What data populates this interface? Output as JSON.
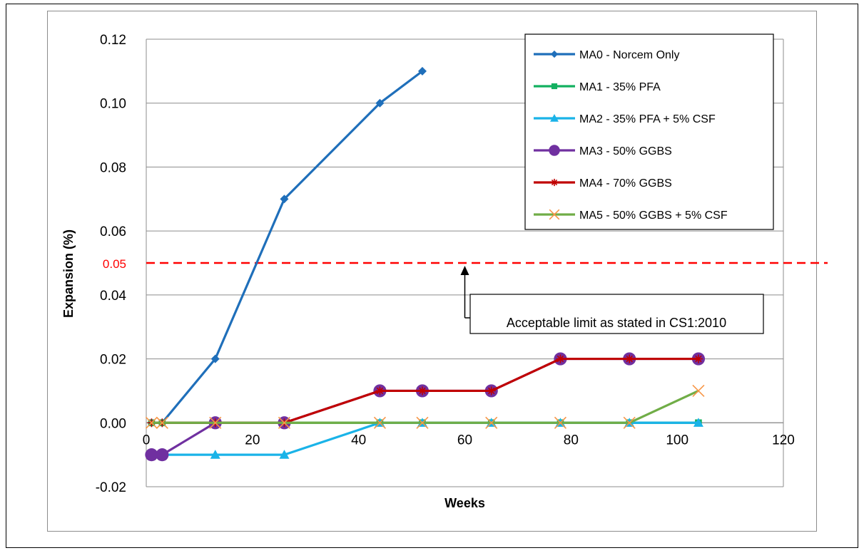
{
  "chart_data": {
    "type": "line",
    "xlabel": "Weeks",
    "ylabel": "Expansion  (%)",
    "xlim": [
      0,
      120
    ],
    "ylim": [
      -0.02,
      0.12
    ],
    "x_ticks": [
      "0",
      "20",
      "40",
      "60",
      "80",
      "100",
      "120"
    ],
    "y_ticks": [
      "-0.02",
      "0.00",
      "0.02",
      "0.04",
      "0.06",
      "0.08",
      "0.10",
      "0.12"
    ],
    "grid": true,
    "legend_position": "top-right",
    "series": [
      {
        "name": "MA0 - Norcem Only",
        "color": "#1f6fba",
        "marker": "diamond",
        "x": [
          1,
          3,
          13,
          26,
          44,
          52
        ],
        "y": [
          0.0,
          0.0,
          0.02,
          0.07,
          0.1,
          0.11
        ]
      },
      {
        "name": "MA1 - 35% PFA",
        "color": "#13b060",
        "marker": "square",
        "x": [
          1,
          3,
          13,
          26,
          44,
          52,
          65,
          78,
          91,
          104
        ],
        "y": [
          0,
          0,
          0,
          0,
          0,
          0,
          0,
          0,
          0,
          0
        ]
      },
      {
        "name": "MA2 - 35% PFA + 5% CSF",
        "color": "#1ab3e8",
        "marker": "triangle",
        "x": [
          1,
          3,
          13,
          26,
          44,
          52,
          65,
          78,
          91,
          104
        ],
        "y": [
          -0.01,
          -0.01,
          -0.01,
          -0.01,
          0.0,
          0.0,
          0.0,
          0.0,
          0.0,
          0.0
        ]
      },
      {
        "name": "MA3 - 50% GGBS",
        "color": "#7030a0",
        "marker": "circle",
        "x": [
          1,
          3,
          13,
          26,
          44,
          52,
          65,
          78,
          91,
          104
        ],
        "y": [
          -0.01,
          -0.01,
          0.0,
          0.0,
          0.01,
          0.01,
          0.01,
          0.02,
          0.02,
          0.02
        ]
      },
      {
        "name": "MA4 - 70% GGBS",
        "color": "#c00000",
        "marker": "star",
        "x": [
          1,
          3,
          13,
          26,
          44,
          52,
          65,
          78,
          91,
          104
        ],
        "y": [
          0.0,
          0.0,
          0.0,
          0.0,
          0.01,
          0.01,
          0.01,
          0.02,
          0.02,
          0.02
        ]
      },
      {
        "name": "MA5 - 50% GGBS + 5% CSF",
        "color": "#70ad47",
        "marker": "x",
        "marker_color": "#f79646",
        "x": [
          1,
          3,
          13,
          26,
          44,
          52,
          65,
          78,
          91,
          104
        ],
        "y": [
          0,
          0,
          0,
          0,
          0,
          0,
          0,
          0,
          0,
          0.01
        ]
      }
    ],
    "reference_line": {
      "value": 0.05,
      "label": "0.05",
      "color": "#ff0000"
    },
    "annotation": {
      "text": "Acceptable limit as stated in CS1:2010",
      "arrow_x": 60
    }
  }
}
